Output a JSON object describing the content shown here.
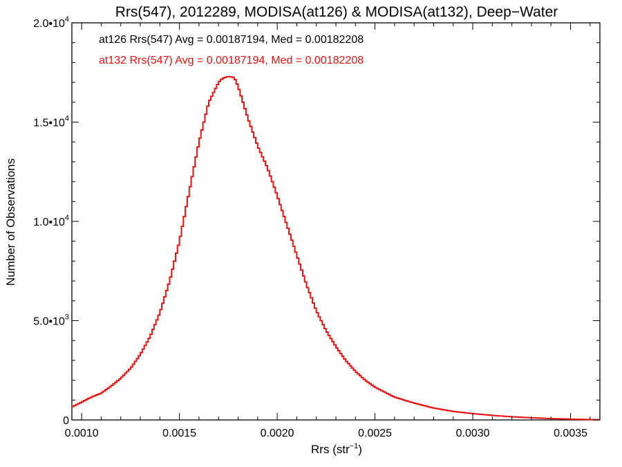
{
  "chart_data": {
    "type": "histogram",
    "title": "Rrs(547), 2012289, MODISA(at126) & MODISA(at132), Deep−Water",
    "xlabel": {
      "base": "Rrs (str",
      "sup": "−1",
      "tail": ")"
    },
    "ylabel": "Number of Observations",
    "xlim": [
      0.00095,
      0.00365
    ],
    "ylim": [
      0,
      20000
    ],
    "x_ticks": [
      {
        "value": 0.001,
        "label": "0.0010"
      },
      {
        "value": 0.0015,
        "label": "0.0015"
      },
      {
        "value": 0.002,
        "label": "0.0020"
      },
      {
        "value": 0.0025,
        "label": "0.0025"
      },
      {
        "value": 0.003,
        "label": "0.0030"
      },
      {
        "value": 0.0035,
        "label": "0.0035"
      }
    ],
    "y_ticks": [
      {
        "value": 0,
        "label": "0",
        "sup": ""
      },
      {
        "value": 5000,
        "label": "5.0•10",
        "sup": "3"
      },
      {
        "value": 10000,
        "label": "1.0•10",
        "sup": "4"
      },
      {
        "value": 15000,
        "label": "1.5•10",
        "sup": "4"
      },
      {
        "value": 20000,
        "label": "2.0•10",
        "sup": "4"
      }
    ],
    "stats": [
      {
        "text": "at126 Rrs(547) Avg = 0.00187194, Med = 0.00182208",
        "color": "#000000"
      },
      {
        "text": "at132 Rrs(547) Avg = 0.00187194, Med = 0.00182208",
        "color": "#ee1111"
      }
    ],
    "series": [
      {
        "color": "#000000",
        "x": [
          0.00095,
          0.001,
          0.00105,
          0.0011,
          0.00115,
          0.0012,
          0.00125,
          0.0013,
          0.00135,
          0.0014,
          0.00145,
          0.0015,
          0.00155,
          0.0016,
          0.00165,
          0.0017,
          0.00172,
          0.00175,
          0.00178,
          0.0018,
          0.00185,
          0.0019,
          0.00195,
          0.002,
          0.00205,
          0.0021,
          0.00215,
          0.0022,
          0.00225,
          0.0023,
          0.00235,
          0.0024,
          0.00245,
          0.0025,
          0.0026,
          0.0027,
          0.0028,
          0.0029,
          0.003,
          0.0031,
          0.0032,
          0.0033,
          0.0034,
          0.0035,
          0.00365
        ],
        "y": [
          650,
          900,
          1150,
          1350,
          1700,
          2100,
          2600,
          3300,
          4200,
          5400,
          7000,
          9000,
          11500,
          14000,
          16000,
          17000,
          17200,
          17300,
          17250,
          16800,
          15200,
          13800,
          12700,
          11300,
          9800,
          8300,
          6800,
          5500,
          4500,
          3700,
          3000,
          2450,
          2000,
          1650,
          1150,
          850,
          600,
          430,
          320,
          230,
          160,
          110,
          70,
          40,
          10
        ]
      },
      {
        "color": "#ee1111",
        "x": [
          0.00095,
          0.001,
          0.00105,
          0.0011,
          0.00115,
          0.0012,
          0.00125,
          0.0013,
          0.00135,
          0.0014,
          0.00145,
          0.0015,
          0.00155,
          0.0016,
          0.00165,
          0.0017,
          0.00172,
          0.00175,
          0.00178,
          0.0018,
          0.00185,
          0.0019,
          0.00195,
          0.002,
          0.00205,
          0.0021,
          0.00215,
          0.0022,
          0.00225,
          0.0023,
          0.00235,
          0.0024,
          0.00245,
          0.0025,
          0.0026,
          0.0027,
          0.0028,
          0.0029,
          0.003,
          0.0031,
          0.0032,
          0.0033,
          0.0034,
          0.0035,
          0.00365
        ],
        "y": [
          650,
          900,
          1150,
          1350,
          1700,
          2100,
          2600,
          3300,
          4200,
          5400,
          7000,
          9000,
          11500,
          14000,
          16000,
          17000,
          17200,
          17300,
          17250,
          16800,
          15200,
          13800,
          12700,
          11300,
          9800,
          8300,
          6800,
          5500,
          4500,
          3700,
          3000,
          2450,
          2000,
          1650,
          1150,
          850,
          600,
          430,
          320,
          230,
          160,
          110,
          70,
          40,
          10
        ]
      }
    ]
  }
}
